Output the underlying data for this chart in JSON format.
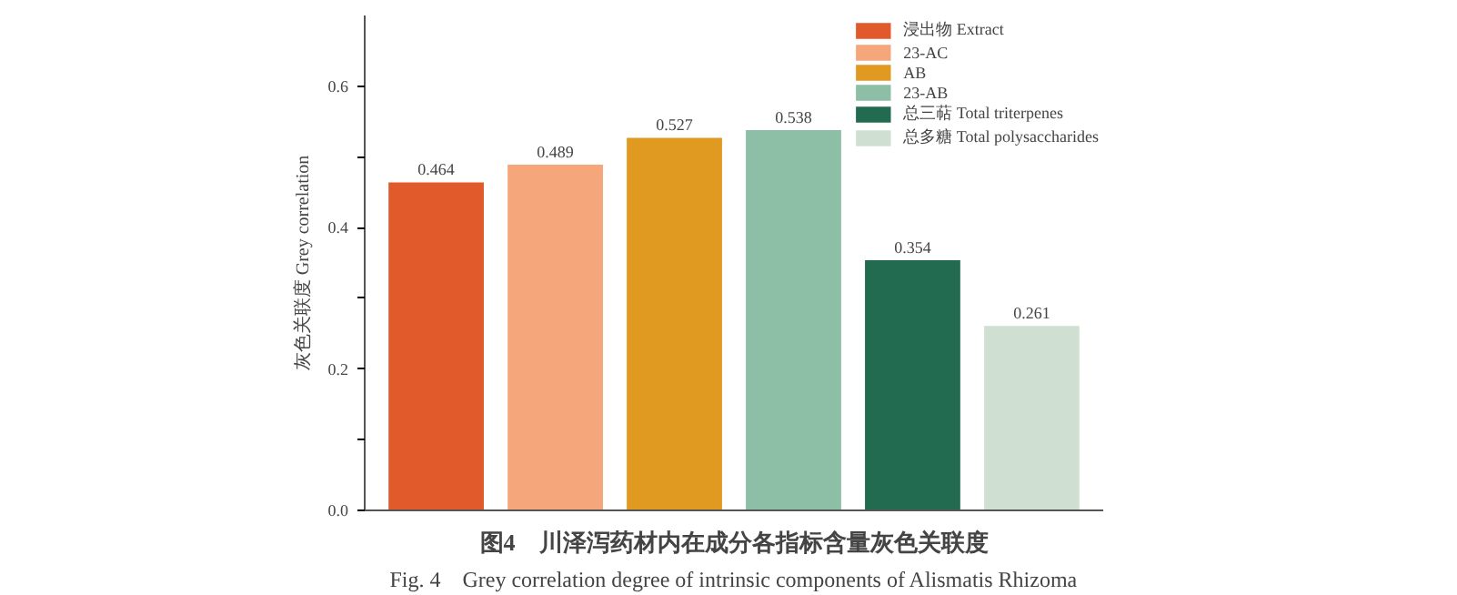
{
  "chart_data": {
    "type": "bar",
    "ylabel": "灰色关联度 Grey correlation",
    "categories": [
      null,
      null,
      null,
      null,
      null,
      null
    ],
    "series": [
      {
        "name": "浸出物 Extract",
        "color": "#e05a2b",
        "values": [
          0.464,
          null,
          null,
          null,
          null,
          null
        ]
      },
      {
        "name": "23-AC",
        "color": "#f5a67a",
        "values": [
          null,
          0.489,
          null,
          null,
          null,
          null
        ]
      },
      {
        "name": "AB",
        "color": "#e09a22",
        "values": [
          null,
          null,
          0.527,
          null,
          null,
          null
        ]
      },
      {
        "name": "23-AB",
        "color": "#8cbfa6",
        "values": [
          null,
          null,
          null,
          0.538,
          null,
          null
        ]
      },
      {
        "name": "总三萜 Total triterpenes",
        "color": "#236b50",
        "values": [
          null,
          null,
          null,
          null,
          0.354,
          null
        ]
      },
      {
        "name": "总多糖 Total polysaccharides",
        "color": "#cfe0d2",
        "values": [
          null,
          null,
          null,
          null,
          null,
          0.261
        ]
      }
    ],
    "ylim": [
      0,
      0.7
    ],
    "yticks": [
      {
        "value": 0,
        "label": "0.0"
      },
      {
        "value": 0.1,
        "label": null
      },
      {
        "value": 0.2,
        "label": "0.2"
      },
      {
        "value": 0.3,
        "label": null
      },
      {
        "value": 0.4,
        "label": "0.4"
      },
      {
        "value": 0.5,
        "label": null
      },
      {
        "value": 0.6,
        "label": "0.6"
      }
    ],
    "data_labels": true,
    "legend": "top right",
    "grid": false,
    "annotations": [
      "图4　川泽泻药材内在成分各指标含量灰色关联度",
      "Fig. 4　Grey correlation degree of intrinsic components of Alismatis Rhizoma"
    ]
  }
}
